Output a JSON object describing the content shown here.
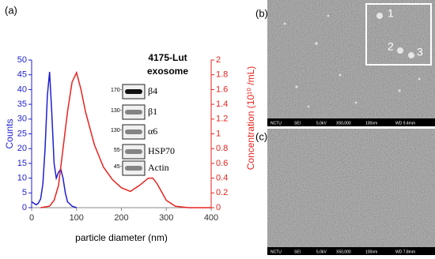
{
  "chart_data": {
    "type": "line",
    "x_label": "particle diameter (nm)",
    "y_label": "Counts",
    "y2_label": "Concentration (10¹⁰ /mL)",
    "xlim": [
      0,
      400
    ],
    "xticks": [
      0,
      100,
      200,
      300,
      400
    ],
    "ylim": [
      0,
      50
    ],
    "yticks": [
      0,
      5,
      10,
      15,
      20,
      25,
      30,
      35,
      40,
      45,
      50
    ],
    "y2lim": [
      0,
      2
    ],
    "y2ticks": [
      0,
      0.2,
      0.4,
      0.6,
      0.8,
      1,
      1.2,
      1.4,
      1.6,
      1.8,
      2
    ],
    "series": [
      {
        "color": "#1f1fd0",
        "axis": "y",
        "x": [
          0,
          5,
          10,
          15,
          20,
          25,
          30,
          35,
          40,
          45,
          50,
          55,
          60,
          65,
          70,
          75,
          80,
          90,
          100
        ],
        "values": [
          2,
          1.5,
          1,
          1.5,
          3,
          8,
          20,
          38,
          46,
          32,
          15,
          10,
          12,
          13,
          10,
          5,
          2,
          0.5,
          0
        ]
      },
      {
        "color": "#e8231f",
        "axis": "y2",
        "x": [
          20,
          40,
          50,
          60,
          70,
          80,
          90,
          100,
          110,
          120,
          140,
          160,
          180,
          200,
          220,
          240,
          260,
          270,
          280,
          300,
          320,
          350,
          400
        ],
        "values": [
          0,
          0.02,
          0.1,
          0.3,
          0.8,
          1.3,
          1.7,
          1.83,
          1.6,
          1.3,
          0.85,
          0.55,
          0.38,
          0.27,
          0.22,
          0.3,
          0.4,
          0.4,
          0.32,
          0.1,
          0.02,
          0,
          0
        ]
      }
    ]
  },
  "panels": {
    "a": "(a)",
    "b": "(b)",
    "c": "(c)"
  },
  "blot": {
    "title": "4175-Lut",
    "subtitle": "exosome",
    "rows": [
      {
        "marker": "170-",
        "label": "β4"
      },
      {
        "marker": "130-",
        "label": "β1"
      },
      {
        "marker": "130-",
        "label": "α6"
      },
      {
        "marker": "55-",
        "label": "HSP70"
      },
      {
        "marker": "45-",
        "label": "Actin"
      }
    ]
  },
  "sem_b": {
    "info": [
      "NCTU",
      "SEI",
      "5.0kV",
      "X50,000",
      "100nm",
      "WD 9.4mm"
    ],
    "inset_labels": [
      "1",
      "2",
      "3"
    ]
  },
  "sem_c": {
    "info": [
      "NCTU",
      "SEI",
      "5.0kV",
      "X50,000",
      "100nm",
      "WD 7.8mm"
    ]
  }
}
